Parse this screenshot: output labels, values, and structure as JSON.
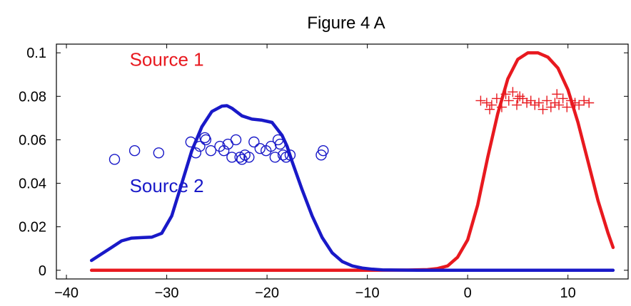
{
  "chart_data": {
    "type": "line",
    "title": "Figure 4 A",
    "xlabel": "",
    "ylabel": "",
    "xlim": [
      -41,
      16
    ],
    "ylim": [
      -0.004,
      0.104
    ],
    "xticks": [
      -40,
      -30,
      -20,
      -10,
      0,
      10
    ],
    "xtick_labels": [
      "−40",
      "−30",
      "−20",
      "−10",
      "0",
      "10"
    ],
    "yticks": [
      0,
      0.02,
      0.04,
      0.06,
      0.08,
      0.1
    ],
    "ytick_labels": [
      "0",
      "0.02",
      "0.04",
      "0.06",
      "0.08",
      "0.1"
    ],
    "grid": false,
    "annotations": [
      {
        "text": "Source 1",
        "x": -33.7,
        "y": 0.094,
        "color": "#e8191f"
      },
      {
        "text": "Source 2",
        "x": -33.7,
        "y": 0.036,
        "color": "#1919c8"
      }
    ],
    "series": [
      {
        "kind": "line",
        "color": "#e8191f",
        "x": [
          -37.5,
          -10,
          -6,
          -4,
          -3,
          -2,
          -1,
          0,
          1,
          2,
          3,
          4,
          5,
          6,
          7,
          8,
          9,
          10,
          11,
          12,
          13,
          14,
          14.5
        ],
        "y": [
          0,
          0,
          0.0001,
          0.0003,
          0.0008,
          0.002,
          0.006,
          0.014,
          0.03,
          0.052,
          0.072,
          0.088,
          0.097,
          0.1,
          0.1,
          0.098,
          0.093,
          0.083,
          0.068,
          0.05,
          0.032,
          0.017,
          0.0105
        ]
      },
      {
        "kind": "line",
        "color": "#1919c8",
        "x": [
          -37.5,
          -36.5,
          -35.5,
          -34.5,
          -33.5,
          -32.5,
          -31.5,
          -30.5,
          -29.5,
          -28.5,
          -27.5,
          -26.5,
          -25.5,
          -24.5,
          -24,
          -23.5,
          -22.5,
          -21.5,
          -20.5,
          -19.5,
          -18.5,
          -18,
          -17.5,
          -16.5,
          -15.5,
          -14.5,
          -13.5,
          -12.5,
          -11.5,
          -10.5,
          -9.5,
          -8.5,
          -7,
          -5,
          0,
          5,
          10,
          14.5
        ],
        "y": [
          0.0045,
          0.0075,
          0.0105,
          0.0135,
          0.0148,
          0.015,
          0.0152,
          0.017,
          0.025,
          0.04,
          0.055,
          0.066,
          0.073,
          0.0755,
          0.0757,
          0.0745,
          0.071,
          0.0695,
          0.069,
          0.068,
          0.062,
          0.057,
          0.05,
          0.037,
          0.025,
          0.015,
          0.008,
          0.004,
          0.002,
          0.001,
          0.0005,
          0.0002,
          0.0001,
          0,
          0,
          0,
          0,
          0
        ]
      },
      {
        "kind": "scatter",
        "marker": "circle",
        "color": "#1919c8",
        "x": [
          -35.2,
          -33.2,
          -30.8,
          -27.6,
          -27.1,
          -26.7,
          -26.1,
          -25.6,
          -24.7,
          -24.3,
          -23.9,
          -23.5,
          -23.1,
          -22.7,
          -22.5,
          -22.2,
          -21.8,
          -21.3,
          -20.7,
          -20.1,
          -19.6,
          -19.2,
          -18.9,
          -18.7,
          -18.4,
          -18.1,
          -17.7,
          -14.6,
          -14.4,
          -26.2
        ],
        "y": [
          0.051,
          0.055,
          0.054,
          0.059,
          0.054,
          0.057,
          0.06,
          0.055,
          0.057,
          0.055,
          0.058,
          0.052,
          0.06,
          0.052,
          0.051,
          0.053,
          0.052,
          0.059,
          0.056,
          0.055,
          0.057,
          0.052,
          0.06,
          0.058,
          0.053,
          0.052,
          0.053,
          0.053,
          0.055,
          0.061
        ]
      },
      {
        "kind": "scatter",
        "marker": "plus",
        "color": "#e8191f",
        "x": [
          1.3,
          1.9,
          2.4,
          2.9,
          3.4,
          3.8,
          4.1,
          4.5,
          4.9,
          5.2,
          5.5,
          5.9,
          6.3,
          6.7,
          7.1,
          7.5,
          7.9,
          8.3,
          8.7,
          9.1,
          9.5,
          9.9,
          10.3,
          10.7,
          11.1,
          11.6,
          12.1,
          2.2,
          5.0,
          8.9
        ],
        "y": [
          0.078,
          0.077,
          0.076,
          0.079,
          0.075,
          0.081,
          0.078,
          0.082,
          0.076,
          0.08,
          0.079,
          0.077,
          0.078,
          0.076,
          0.077,
          0.074,
          0.078,
          0.075,
          0.077,
          0.076,
          0.079,
          0.075,
          0.078,
          0.077,
          0.076,
          0.078,
          0.077,
          0.074,
          0.079,
          0.081
        ]
      }
    ]
  }
}
